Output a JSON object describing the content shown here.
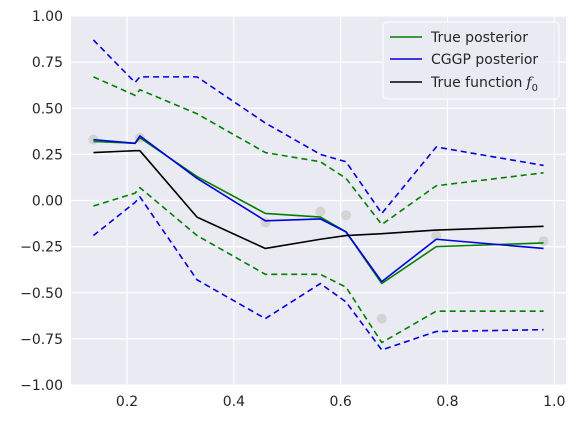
{
  "chart_data": {
    "type": "line",
    "xlim": [
      0.095,
      1.022
    ],
    "ylim": [
      -1.0,
      1.0
    ],
    "xticks": [
      0.2,
      0.4,
      0.6,
      0.8,
      1.0
    ],
    "xtick_labels": [
      "0.2",
      "0.4",
      "0.6",
      "0.8",
      "1.0"
    ],
    "yticks": [
      -1.0,
      -0.75,
      -0.5,
      -0.25,
      0.0,
      0.25,
      0.5,
      0.75,
      1.0
    ],
    "ytick_labels": [
      "−1.00",
      "−0.75",
      "−0.50",
      "−0.25",
      "0.00",
      "0.25",
      "0.50",
      "0.75",
      "1.00"
    ],
    "grid": true,
    "style": "seaborn-darkgrid",
    "background_color": "#eaeaf2",
    "legend_position": "top-right",
    "x": [
      0.137,
      0.215,
      0.224,
      0.331,
      0.459,
      0.562,
      0.61,
      0.677,
      0.779,
      0.98
    ],
    "scatter": {
      "color": "#d3d3d3",
      "points": [
        [
          0.137,
          0.33
        ],
        [
          0.224,
          0.34
        ],
        [
          0.459,
          -0.12
        ],
        [
          0.562,
          -0.06
        ],
        [
          0.61,
          -0.08
        ],
        [
          0.677,
          -0.64
        ],
        [
          0.779,
          -0.19
        ],
        [
          0.98,
          -0.22
        ]
      ]
    },
    "series": [
      {
        "name": "True posterior",
        "color": "#008000",
        "dash": false,
        "legend": true,
        "values": [
          0.32,
          0.31,
          0.34,
          0.13,
          -0.07,
          -0.09,
          -0.17,
          -0.45,
          -0.25,
          -0.23
        ]
      },
      {
        "name": "",
        "color": "#008000",
        "dash": true,
        "legend": false,
        "values": [
          0.67,
          0.57,
          0.6,
          0.47,
          0.26,
          0.21,
          0.12,
          -0.13,
          0.08,
          0.15
        ]
      },
      {
        "name": "",
        "color": "#008000",
        "dash": true,
        "legend": false,
        "values": [
          -0.03,
          0.04,
          0.07,
          -0.19,
          -0.4,
          -0.4,
          -0.47,
          -0.77,
          -0.6,
          -0.6
        ]
      },
      {
        "name": "CGGP posterior",
        "color": "#0000dd",
        "dash": false,
        "legend": true,
        "values": [
          0.33,
          0.31,
          0.35,
          0.12,
          -0.11,
          -0.1,
          -0.17,
          -0.44,
          -0.21,
          -0.26
        ]
      },
      {
        "name": "",
        "color": "#0000dd",
        "dash": true,
        "legend": false,
        "values": [
          0.87,
          0.64,
          0.67,
          0.67,
          0.42,
          0.25,
          0.21,
          -0.07,
          0.29,
          0.19
        ]
      },
      {
        "name": "",
        "color": "#0000dd",
        "dash": true,
        "legend": false,
        "values": [
          -0.19,
          -0.01,
          0.02,
          -0.43,
          -0.64,
          -0.45,
          -0.55,
          -0.81,
          -0.71,
          -0.7
        ]
      },
      {
        "name": "True function f_0",
        "color": "#000000",
        "dash": false,
        "legend": true,
        "values": [
          0.26,
          0.27,
          0.27,
          -0.09,
          -0.26,
          -0.21,
          -0.19,
          -0.18,
          -0.16,
          -0.14
        ]
      }
    ],
    "legend": [
      {
        "label": "True posterior",
        "color": "#008000"
      },
      {
        "label": "CGGP posterior",
        "color": "#0000dd"
      },
      {
        "label": "True function",
        "label_math": "f",
        "label_sub": "0",
        "color": "#000000"
      }
    ]
  }
}
